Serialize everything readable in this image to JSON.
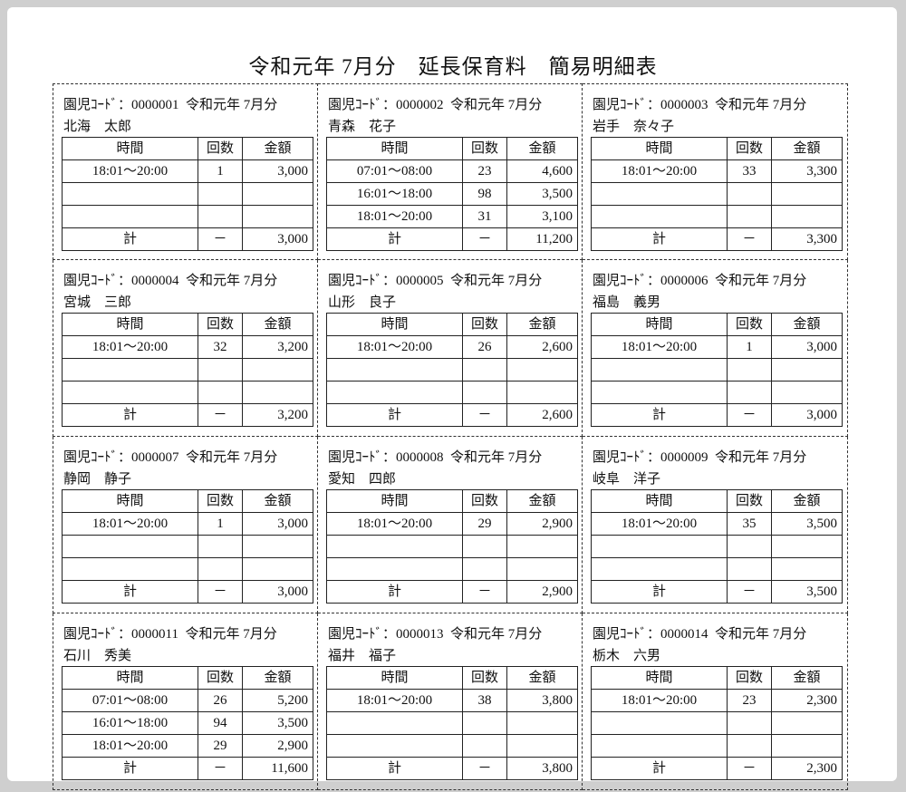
{
  "title": "令和元年 7月分　延長保育料　簡易明細表",
  "labels": {
    "code_prefix": "園児ｺｰﾄﾞ：",
    "period": "令和元年 7月分",
    "col_time": "時間",
    "col_count": "回数",
    "col_amount": "金額",
    "total": "計",
    "dash": "－"
  },
  "children": [
    {
      "code": "0000001",
      "name": "北海　太郎",
      "rows": [
        [
          "18:01～20:00",
          "1",
          "3,000"
        ]
      ],
      "total": "3,000"
    },
    {
      "code": "0000002",
      "name": "青森　花子",
      "rows": [
        [
          "07:01～08:00",
          "23",
          "4,600"
        ],
        [
          "16:01～18:00",
          "98",
          "3,500"
        ],
        [
          "18:01～20:00",
          "31",
          "3,100"
        ]
      ],
      "total": "11,200"
    },
    {
      "code": "0000003",
      "name": "岩手　奈々子",
      "rows": [
        [
          "18:01～20:00",
          "33",
          "3,300"
        ]
      ],
      "total": "3,300"
    },
    {
      "code": "0000004",
      "name": "宮城　三郎",
      "rows": [
        [
          "18:01～20:00",
          "32",
          "3,200"
        ]
      ],
      "total": "3,200"
    },
    {
      "code": "0000005",
      "name": "山形　良子",
      "rows": [
        [
          "18:01～20:00",
          "26",
          "2,600"
        ]
      ],
      "total": "2,600"
    },
    {
      "code": "0000006",
      "name": "福島　義男",
      "rows": [
        [
          "18:01～20:00",
          "1",
          "3,000"
        ]
      ],
      "total": "3,000"
    },
    {
      "code": "0000007",
      "name": "静岡　静子",
      "rows": [
        [
          "18:01～20:00",
          "1",
          "3,000"
        ]
      ],
      "total": "3,000"
    },
    {
      "code": "0000008",
      "name": "愛知　四郎",
      "rows": [
        [
          "18:01～20:00",
          "29",
          "2,900"
        ]
      ],
      "total": "2,900"
    },
    {
      "code": "0000009",
      "name": "岐阜　洋子",
      "rows": [
        [
          "18:01～20:00",
          "35",
          "3,500"
        ]
      ],
      "total": "3,500"
    },
    {
      "code": "0000011",
      "name": "石川　秀美",
      "rows": [
        [
          "07:01～08:00",
          "26",
          "5,200"
        ],
        [
          "16:01～18:00",
          "94",
          "3,500"
        ],
        [
          "18:01～20:00",
          "29",
          "2,900"
        ]
      ],
      "total": "11,600"
    },
    {
      "code": "0000013",
      "name": "福井　福子",
      "rows": [
        [
          "18:01～20:00",
          "38",
          "3,800"
        ]
      ],
      "total": "3,800"
    },
    {
      "code": "0000014",
      "name": "栃木　六男",
      "rows": [
        [
          "18:01～20:00",
          "23",
          "2,300"
        ]
      ],
      "total": "2,300"
    }
  ]
}
